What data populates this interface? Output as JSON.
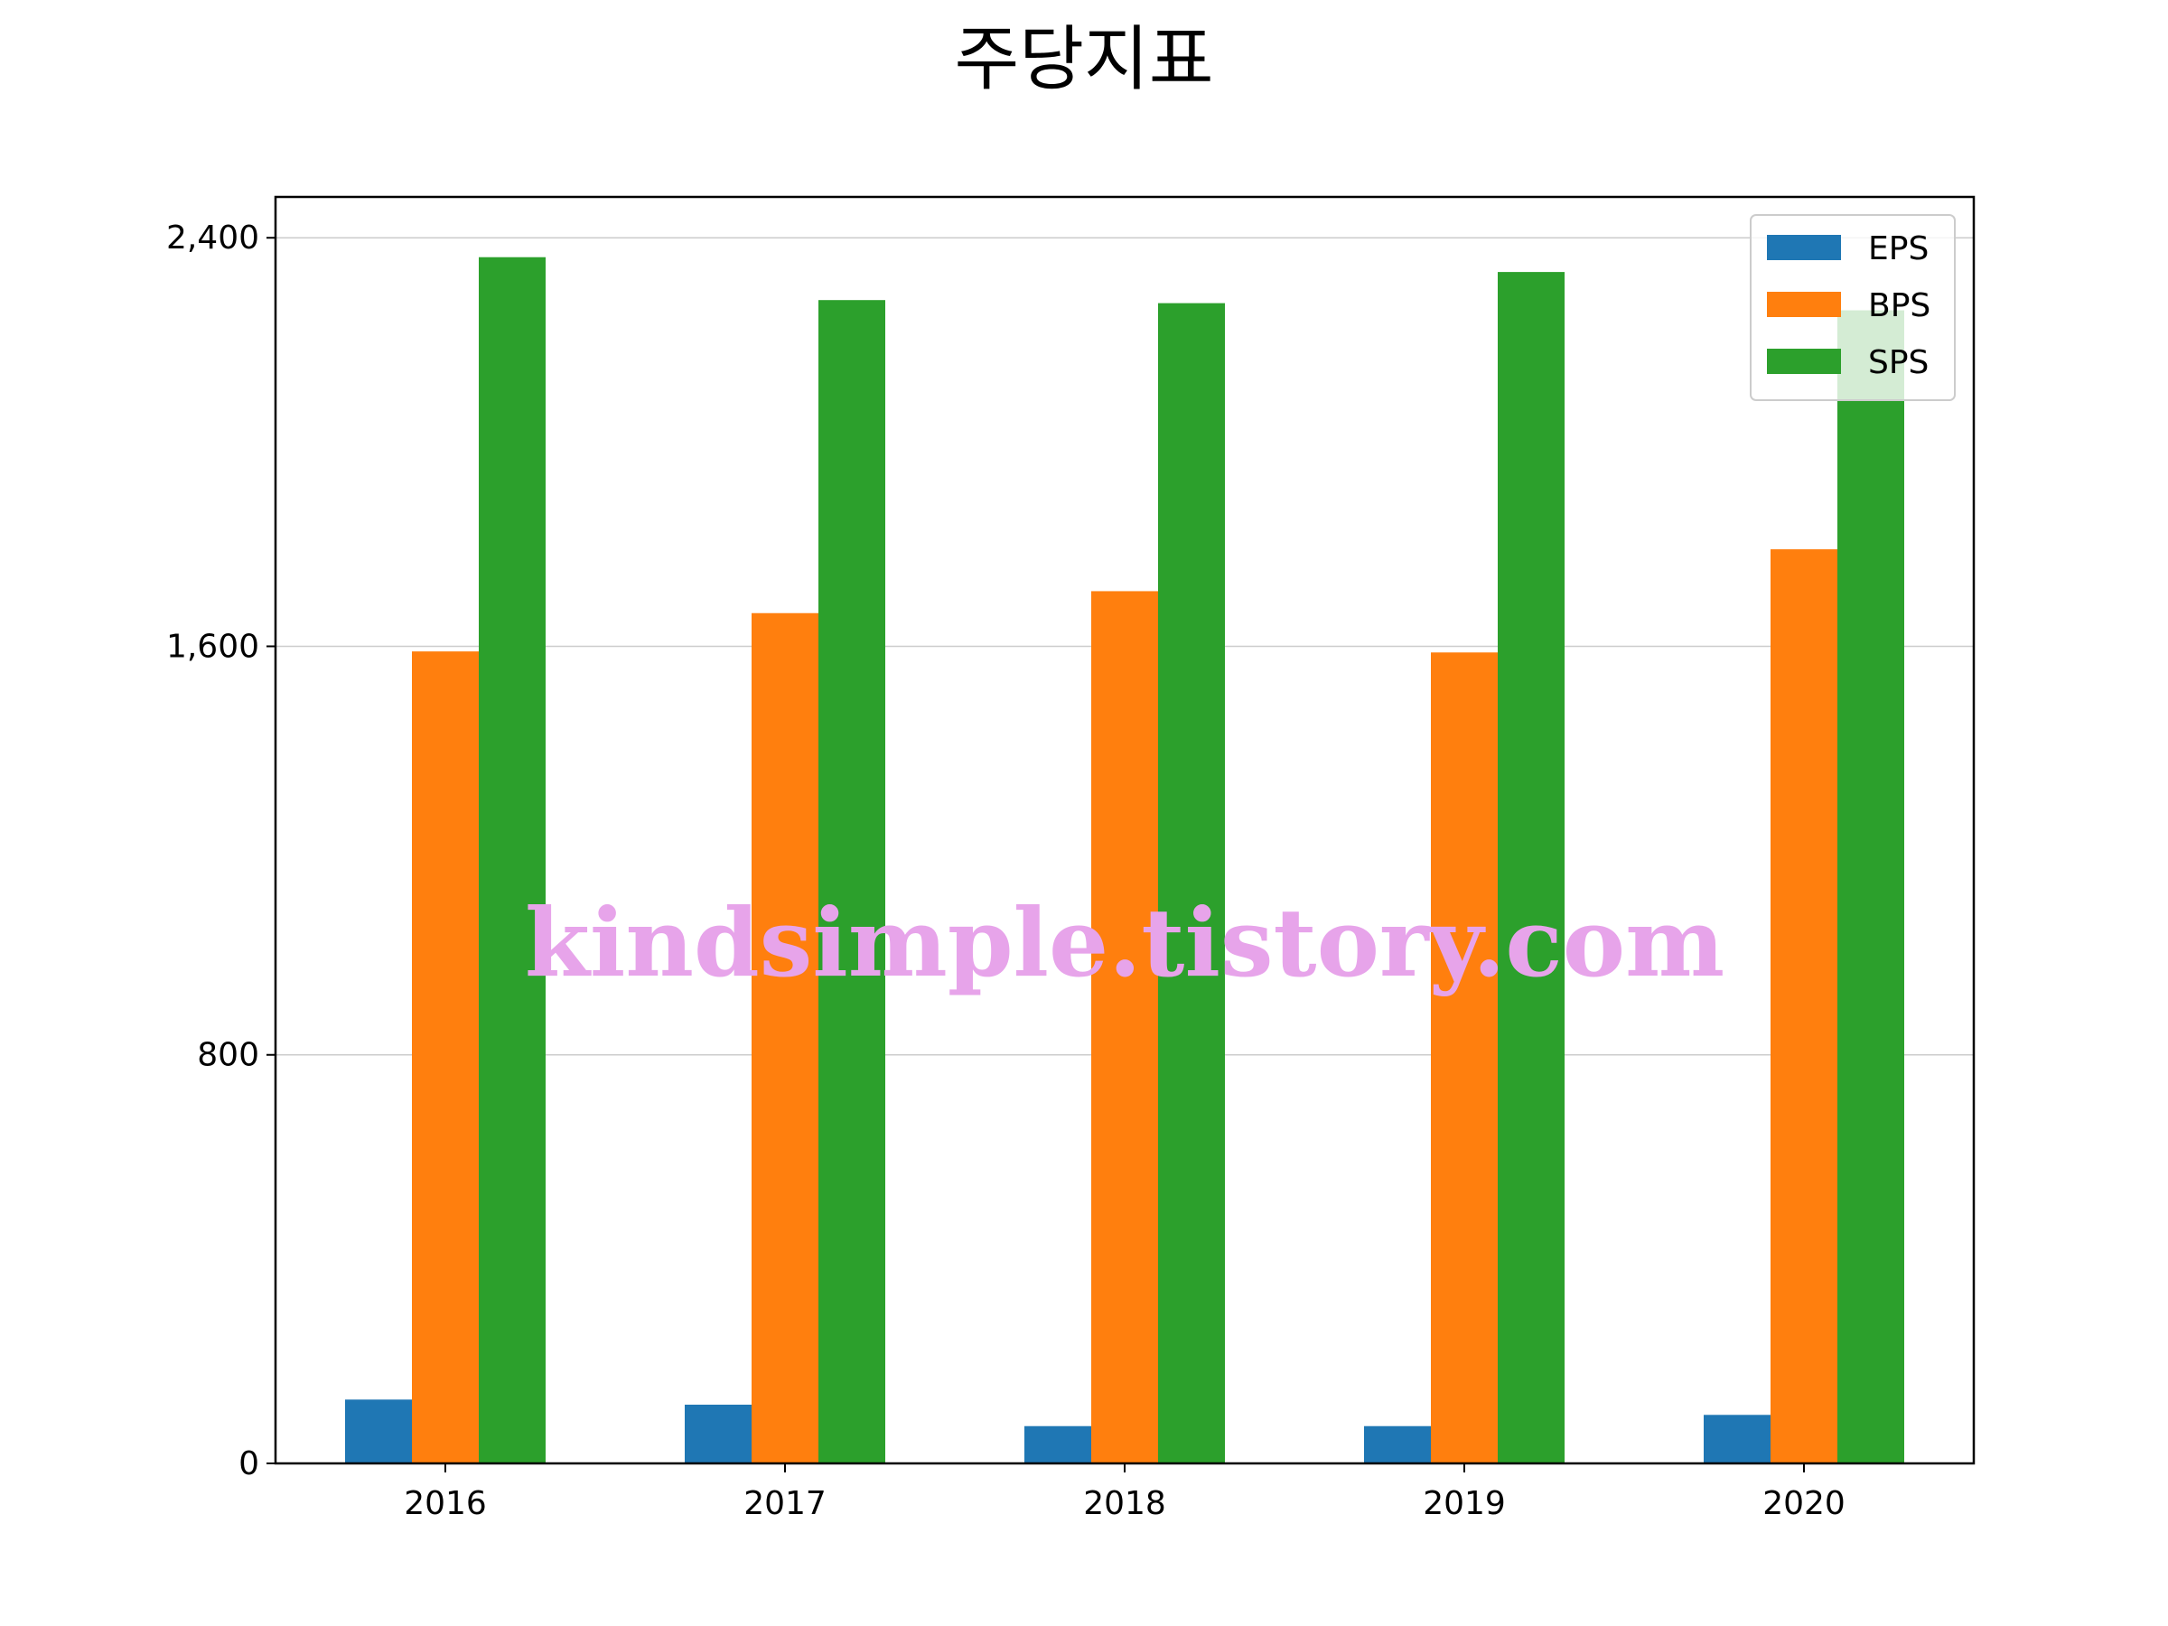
{
  "chart_data": {
    "type": "bar",
    "title": "주당지표",
    "xlabel": "",
    "ylabel": "",
    "categories": [
      "2016",
      "2017",
      "2018",
      "2019",
      "2020"
    ],
    "series": [
      {
        "name": "EPS",
        "color": "#1f77b4",
        "values": [
          125,
          115,
          73,
          73,
          95
        ]
      },
      {
        "name": "BPS",
        "color": "#ff7f0e",
        "values": [
          1590,
          1665,
          1708,
          1588,
          1790
        ]
      },
      {
        "name": "SPS",
        "color": "#2ca02c",
        "values": [
          2362,
          2278,
          2272,
          2333,
          2258
        ]
      }
    ],
    "ylim": [
      0,
      2480
    ],
    "yticks": [
      0,
      800,
      1600,
      2400
    ],
    "ytick_labels": [
      "0",
      "800",
      "1,600",
      "2,400"
    ],
    "grid": "horizontal",
    "legend_position": "top-right"
  },
  "watermark": "kindsimple.tistory.com"
}
